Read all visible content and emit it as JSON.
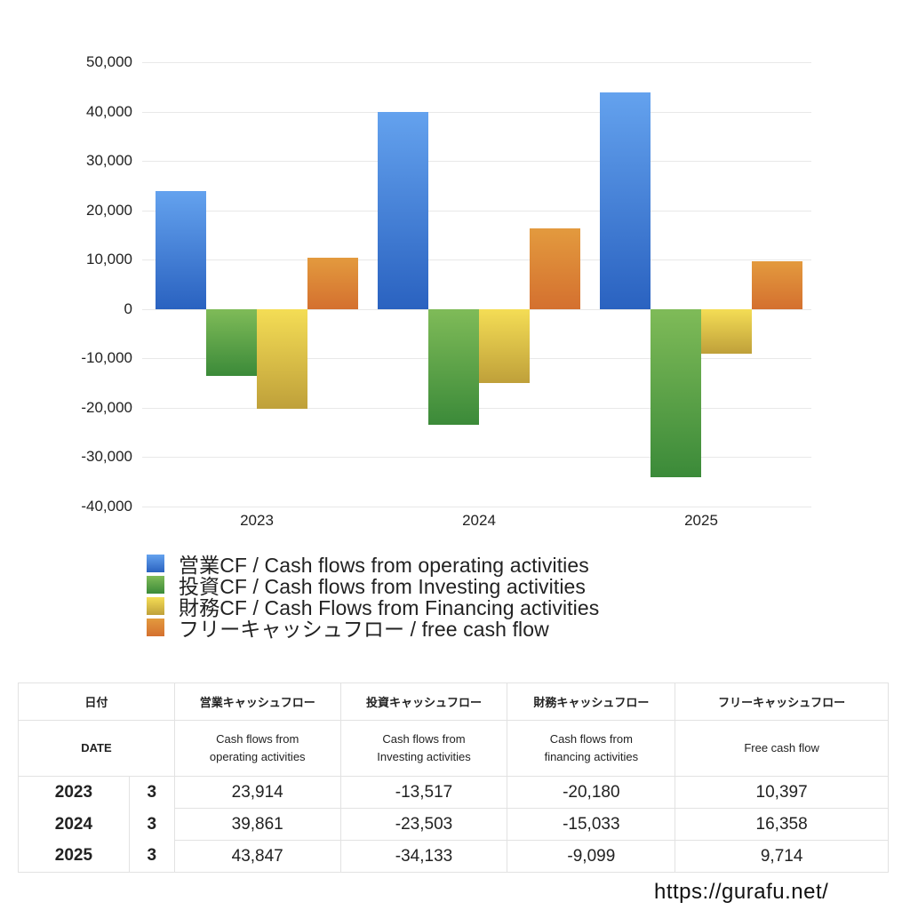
{
  "chart_data": {
    "type": "bar",
    "title": "",
    "xlabel": "",
    "ylabel": "",
    "categories": [
      "2023",
      "2024",
      "2025"
    ],
    "series": [
      {
        "name": "営業CF / Cash flows from operating activities",
        "color_top": "#64a2ee",
        "color_bottom": "#2a62c0",
        "values": [
          23914,
          39861,
          43847
        ]
      },
      {
        "name": "投資CF / Cash flows from Investing activities",
        "color_top": "#7fbb58",
        "color_bottom": "#3b8a39",
        "values": [
          -13517,
          -23503,
          -34133
        ]
      },
      {
        "name": "財務CF / Cash Flows from Financing activities",
        "color_top": "#f4dd55",
        "color_bottom": "#bfa03a",
        "values": [
          -20180,
          -15033,
          -9099
        ]
      },
      {
        "name": "フリーキャッシュフロー / free cash flow",
        "color_top": "#e39a3e",
        "color_bottom": "#d4702f",
        "values": [
          10397,
          16358,
          9714
        ]
      }
    ],
    "ylim": [
      -40000,
      50000
    ],
    "yticks": [
      "50,000",
      "40,000",
      "30,000",
      "20,000",
      "10,000",
      "0",
      "-10,000",
      "-20,000",
      "-30,000",
      "-40,000"
    ],
    "grid": true,
    "legend_position": "bottom-left"
  },
  "legend": [
    {
      "label": "営業CF / Cash flows from operating activities",
      "color": "#4a86dc"
    },
    {
      "label": "投資CF / Cash flows from Investing activities",
      "color": "#5aa648"
    },
    {
      "label": "財務CF / Cash Flows from Financing activities",
      "color": "#dcc24a"
    },
    {
      "label": "フリーキャッシュフロー / free cash flow",
      "color": "#dc8436"
    }
  ],
  "table": {
    "header_ja": [
      "日付",
      "営業キャッシュフロー",
      "投資キャッシュフロー",
      "財務キャッシュフロー",
      "フリーキャッシュフロー"
    ],
    "header_en": {
      "date": "DATE",
      "operating_1": "Cash flows from",
      "operating_2": "operating activities",
      "investing_1": "Cash flows from",
      "investing_2": "Investing activities",
      "financing_1": "Cash flows from",
      "financing_2": "financing activities",
      "free": "Free cash flow"
    },
    "rows": [
      {
        "year": "2023",
        "month": "3",
        "operating": "23,914",
        "investing": "-13,517",
        "financing": "-20,180",
        "free": "10,397"
      },
      {
        "year": "2024",
        "month": "3",
        "operating": "39,861",
        "investing": "-23,503",
        "financing": "-15,033",
        "free": "16,358"
      },
      {
        "year": "2025",
        "month": "3",
        "operating": "43,847",
        "investing": "-34,133",
        "financing": "-9,099",
        "free": "9,714"
      }
    ]
  },
  "footer": {
    "url": "https://gurafu.net/"
  }
}
